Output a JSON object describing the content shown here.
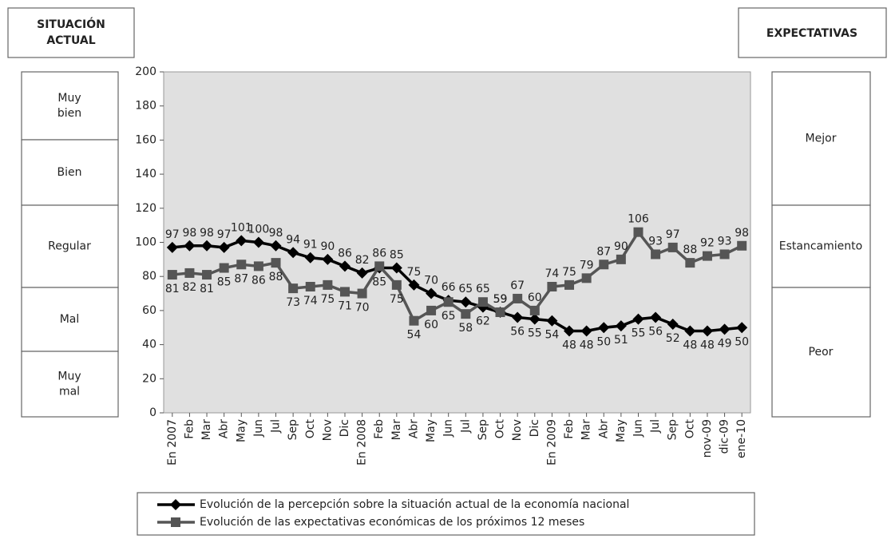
{
  "chart_data": {
    "type": "line",
    "left_header": "SITUACIÓN ACTUAL",
    "right_header": "EXPECTATIVAS",
    "left_scale": [
      "Muy bien",
      "Bien",
      "Regular",
      "Mal",
      "Muy mal"
    ],
    "right_scale": [
      "Mejor",
      "Estancamiento",
      "Peor"
    ],
    "categories": [
      "En 2007",
      "Feb",
      "Mar",
      "Abr",
      "May",
      "Jun",
      "Jul",
      "Sep",
      "Oct",
      "Nov",
      "Dic",
      "En 2008",
      "Feb",
      "Mar",
      "Abr",
      "May",
      "Jun",
      "Jul",
      "Sep",
      "Oct",
      "Nov",
      "Dic",
      "En 2009",
      "Feb",
      "Mar",
      "Abr",
      "May",
      "Jun",
      "Jul",
      "Sep",
      "Oct",
      "nov-09",
      "dic-09",
      "ene-10"
    ],
    "series": [
      {
        "name": "Evolución de la percepción sobre la situación actual de la economía nacional",
        "color": "#000000",
        "marker": "diamond",
        "values": [
          97,
          98,
          98,
          97,
          101,
          100,
          98,
          94,
          91,
          90,
          86,
          82,
          85,
          85,
          75,
          70,
          66,
          65,
          62,
          59,
          56,
          55,
          54,
          48,
          48,
          50,
          51,
          55,
          56,
          52,
          48,
          48,
          49,
          50
        ]
      },
      {
        "name": "Evolución de las expectativas económicas de los próximos 12 meses",
        "color": "#555555",
        "marker": "square",
        "values": [
          81,
          82,
          81,
          85,
          87,
          86,
          88,
          73,
          74,
          75,
          71,
          70,
          86,
          75,
          54,
          60,
          65,
          58,
          65,
          59,
          67,
          60,
          74,
          75,
          79,
          87,
          90,
          106,
          93,
          97,
          88,
          92,
          93,
          98
        ]
      }
    ],
    "ylim": [
      0,
      200
    ],
    "yticks": [
      0,
      20,
      40,
      60,
      80,
      100,
      120,
      140,
      160,
      180,
      200
    ],
    "plot_background": "#e0e0e0"
  }
}
